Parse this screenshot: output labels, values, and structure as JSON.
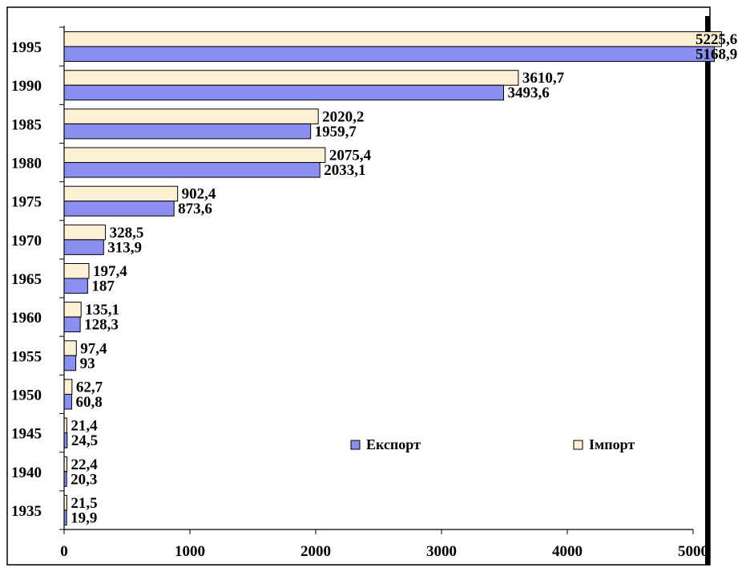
{
  "chart_data": {
    "type": "bar",
    "orientation": "horizontal",
    "categories": [
      "1995",
      "1990",
      "1985",
      "1980",
      "1975",
      "1970",
      "1965",
      "1960",
      "1955",
      "1950",
      "1945",
      "1940",
      "1935"
    ],
    "series": [
      {
        "name": "Імпорт",
        "color": "#fdf0d5",
        "values": [
          5225.6,
          3610.7,
          2020.2,
          2075.4,
          902.4,
          328.5,
          197.4,
          135.1,
          97.4,
          62.7,
          21.4,
          22.4,
          21.5
        ],
        "labels": [
          "5225,6",
          "3610,7",
          "2020,2",
          "2075,4",
          "902,4",
          "328,5",
          "197,4",
          "135,1",
          "97,4",
          "62,7",
          "21,4",
          "22,4",
          "21,5"
        ]
      },
      {
        "name": "Експорт",
        "color": "#8b8ff0",
        "values": [
          5168.9,
          3493.6,
          1959.7,
          2033.1,
          873.6,
          313.9,
          187,
          128.3,
          93,
          60.8,
          24.5,
          20.3,
          19.9
        ],
        "labels": [
          "5168,9",
          "3493,6",
          "1959,7",
          "2033,1",
          "873,6",
          "313,9",
          "187",
          "128,3",
          "93",
          "60,8",
          "24,5",
          "20,3",
          "19,9"
        ]
      }
    ],
    "x_ticks": [
      "0",
      "1000",
      "2000",
      "3000",
      "4000",
      "5000"
    ],
    "xlim": [
      0,
      5000
    ],
    "grid": false,
    "legend": {
      "placement": "inside-lower-right",
      "items": [
        {
          "label": "Експорт",
          "color": "#8b8ff0"
        },
        {
          "label": "Імпорт",
          "color": "#fdf0d5"
        }
      ]
    },
    "title": "",
    "xlabel": "",
    "ylabel": ""
  }
}
